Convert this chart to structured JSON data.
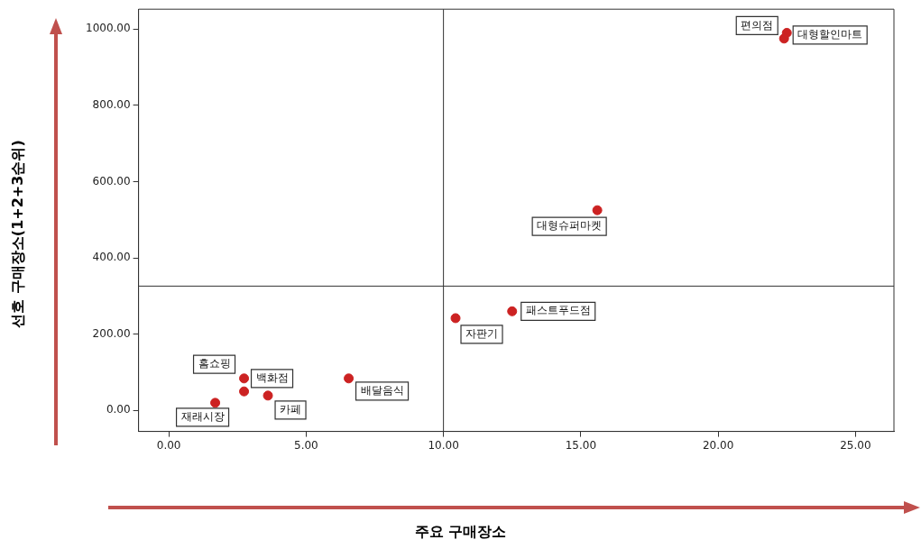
{
  "chart_data": {
    "type": "scatter",
    "xlabel": "주요 구매장소",
    "ylabel": "선호 구매장소(1+2+3순위)",
    "x": [
      1.69,
      2.74,
      2.74,
      3.61,
      6.55,
      10.44,
      12.5,
      15.6,
      22.5,
      22.4
    ],
    "values": [
      20,
      84,
      50,
      39,
      84,
      242,
      260,
      525,
      990,
      975
    ],
    "color": "#cc2222",
    "marker": "circle",
    "grid": false,
    "legend": false,
    "xlim": [
      -1.1,
      26.4
    ],
    "ylim": [
      -55,
      1052
    ],
    "xticks": [
      {
        "value": 0,
        "label": "0.00"
      },
      {
        "value": 5,
        "label": "5.00"
      },
      {
        "value": 10,
        "label": "10.00"
      },
      {
        "value": 15,
        "label": "15.00"
      },
      {
        "value": 20,
        "label": "20.00"
      },
      {
        "value": 25,
        "label": "25.00"
      }
    ],
    "yticks": [
      {
        "value": 0,
        "label": "0.00"
      },
      {
        "value": 200,
        "label": "200.00"
      },
      {
        "value": 400,
        "label": "400.00"
      },
      {
        "value": 600,
        "label": "600.00"
      },
      {
        "value": 800,
        "label": "800.00"
      },
      {
        "value": 1000,
        "label": "1000.00"
      }
    ],
    "ref_lines": [
      {
        "axis": "x",
        "value": 10,
        "color": "#333333"
      },
      {
        "axis": "y",
        "value": 326,
        "color": "#333333"
      }
    ],
    "annotations": [
      {
        "text": "재래시장",
        "x": 1.69,
        "y": 20
      },
      {
        "text": "백화점",
        "x": 2.74,
        "y": 84
      },
      {
        "text": "홈쇼핑",
        "x": 2.74,
        "y": 50
      },
      {
        "text": "카페",
        "x": 3.61,
        "y": 39
      },
      {
        "text": "배달음식",
        "x": 6.55,
        "y": 84
      },
      {
        "text": "자판기",
        "x": 10.44,
        "y": 242
      },
      {
        "text": "패스트푸드점",
        "x": 12.5,
        "y": 260
      },
      {
        "text": "대형슈퍼마켓",
        "x": 15.6,
        "y": 525
      },
      {
        "text": "편의점",
        "x": 22.5,
        "y": 990
      },
      {
        "text": "대형할인마트",
        "x": 22.4,
        "y": 975
      }
    ]
  }
}
